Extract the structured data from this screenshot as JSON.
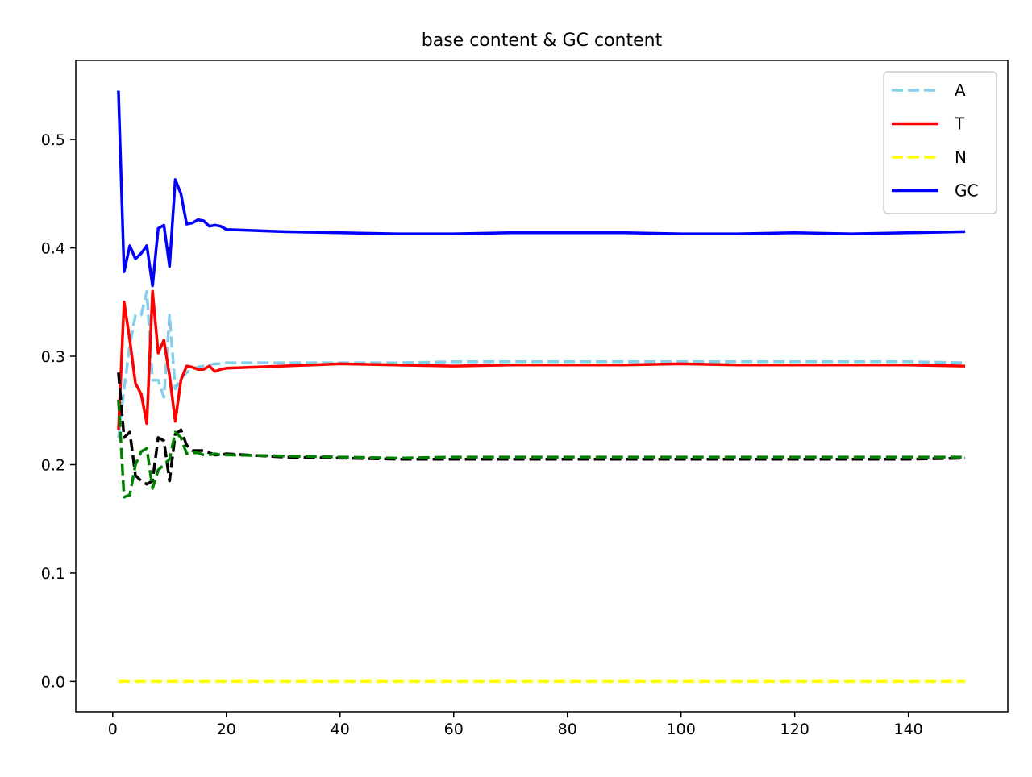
{
  "chart_data": {
    "type": "line",
    "title": "base content & GC content",
    "xlabel": "",
    "ylabel": "",
    "xlim": [
      -6.5,
      157.5
    ],
    "ylim": [
      -0.028,
      0.573
    ],
    "xticks": [
      0,
      20,
      40,
      60,
      80,
      100,
      120,
      140
    ],
    "xtick_labels": [
      "0",
      "20",
      "40",
      "60",
      "80",
      "100",
      "120",
      "140"
    ],
    "yticks": [
      0.0,
      0.1,
      0.2,
      0.3,
      0.4,
      0.5
    ],
    "ytick_labels": [
      "0.0",
      "0.1",
      "0.2",
      "0.3",
      "0.4",
      "0.5"
    ],
    "grid": false,
    "legend_position": "top-right",
    "x": [
      1,
      2,
      3,
      4,
      5,
      6,
      7,
      8,
      9,
      10,
      11,
      12,
      13,
      14,
      15,
      16,
      17,
      18,
      19,
      20,
      30,
      40,
      50,
      60,
      70,
      80,
      90,
      100,
      110,
      120,
      130,
      140,
      150
    ],
    "series": [
      {
        "name": "A",
        "color": "#87ceeb",
        "dash": true,
        "in_legend": true,
        "values": [
          0.225,
          0.27,
          0.31,
          0.338,
          0.338,
          0.36,
          0.278,
          0.278,
          0.262,
          0.338,
          0.27,
          0.28,
          0.285,
          0.288,
          0.29,
          0.291,
          0.292,
          0.293,
          0.293,
          0.294,
          0.294,
          0.294,
          0.294,
          0.295,
          0.295,
          0.295,
          0.295,
          0.295,
          0.295,
          0.295,
          0.295,
          0.295,
          0.294
        ]
      },
      {
        "name": "T",
        "color": "#ff0000",
        "dash": false,
        "in_legend": true,
        "values": [
          0.232,
          0.35,
          0.315,
          0.275,
          0.265,
          0.238,
          0.36,
          0.303,
          0.315,
          0.282,
          0.24,
          0.278,
          0.291,
          0.29,
          0.288,
          0.288,
          0.291,
          0.286,
          0.288,
          0.289,
          0.291,
          0.293,
          0.292,
          0.291,
          0.292,
          0.292,
          0.292,
          0.293,
          0.292,
          0.292,
          0.292,
          0.292,
          0.291
        ]
      },
      {
        "name": "N",
        "color": "#ffff00",
        "dash": true,
        "in_legend": true,
        "values": [
          0.0,
          0.0,
          0.0,
          0.0,
          0.0,
          0.0,
          0.0,
          0.0,
          0.0,
          0.0,
          0.0,
          0.0,
          0.0,
          0.0,
          0.0,
          0.0,
          0.0,
          0.0,
          0.0,
          0.0,
          0.0,
          0.0,
          0.0,
          0.0,
          0.0,
          0.0,
          0.0,
          0.0,
          0.0,
          0.0,
          0.0,
          0.0,
          0.0
        ]
      },
      {
        "name": "GC",
        "color": "#0000ff",
        "dash": false,
        "in_legend": true,
        "values": [
          0.545,
          0.378,
          0.402,
          0.39,
          0.395,
          0.402,
          0.365,
          0.418,
          0.421,
          0.383,
          0.463,
          0.45,
          0.422,
          0.423,
          0.426,
          0.425,
          0.42,
          0.421,
          0.42,
          0.417,
          0.415,
          0.414,
          0.413,
          0.413,
          0.414,
          0.414,
          0.414,
          0.413,
          0.413,
          0.414,
          0.413,
          0.414,
          0.415
        ]
      },
      {
        "name": "",
        "color": "#000000",
        "dash": true,
        "in_legend": false,
        "values": [
          0.285,
          0.225,
          0.23,
          0.19,
          0.185,
          0.182,
          0.185,
          0.225,
          0.222,
          0.185,
          0.228,
          0.232,
          0.218,
          0.213,
          0.213,
          0.213,
          0.211,
          0.209,
          0.209,
          0.21,
          0.207,
          0.206,
          0.205,
          0.205,
          0.205,
          0.205,
          0.205,
          0.205,
          0.205,
          0.205,
          0.205,
          0.205,
          0.206
        ]
      },
      {
        "name": "",
        "color": "#008000",
        "dash": true,
        "in_legend": false,
        "values": [
          0.26,
          0.17,
          0.172,
          0.2,
          0.212,
          0.215,
          0.178,
          0.195,
          0.2,
          0.205,
          0.23,
          0.225,
          0.21,
          0.211,
          0.211,
          0.209,
          0.209,
          0.21,
          0.209,
          0.209,
          0.208,
          0.207,
          0.206,
          0.207,
          0.207,
          0.207,
          0.207,
          0.207,
          0.207,
          0.207,
          0.207,
          0.207,
          0.207
        ]
      }
    ]
  }
}
